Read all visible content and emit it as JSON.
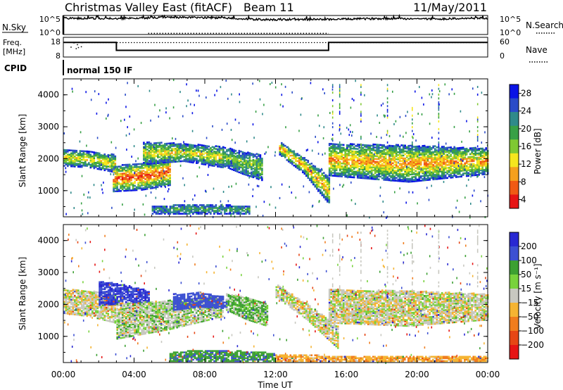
{
  "header": {
    "station": "Christmas Valley East (fitACF)",
    "beam": "Beam 11",
    "date": "11/May/2011"
  },
  "labels": {
    "nsky": "N.Sky",
    "nsearch": "N.Search",
    "freq": "Freq.",
    "freq_unit": "[MHz]",
    "nave": "Nave",
    "cpid": "CPID",
    "cpid_value": "normal 150 IF",
    "ylabel": "Slant Range [km]",
    "xlabel": "Time UT",
    "power_label": "Power [dB]",
    "velocity_label": "Velocity [m s⁻¹]"
  },
  "axis_ticks": {
    "nsky_left": [
      "10^5",
      "10^0"
    ],
    "nsky_right": [
      "10^5",
      "10^0"
    ],
    "freq_left": [
      "18",
      "8"
    ],
    "nave_right": [
      "60",
      "0"
    ],
    "range": [
      "1000",
      "2000",
      "3000",
      "4000"
    ],
    "time": [
      "00:00",
      "04:00",
      "08:00",
      "12:00",
      "16:00",
      "20:00",
      "00:00"
    ]
  },
  "chart_data": [
    {
      "type": "line",
      "panel": "noise",
      "series": [
        {
          "name": "N.Sky",
          "x_hours": [
            0,
            3,
            6,
            9,
            10.5,
            12,
            15,
            18,
            21,
            24
          ],
          "values_log10": [
            4.3,
            4.2,
            4.5,
            4.4,
            4.0,
            3.9,
            4.0,
            4.2,
            4.1,
            4.3
          ]
        },
        {
          "name": "N.Search",
          "x_hours": [
            4.8,
            15
          ],
          "values_log10": [
            0.3,
            0.3
          ]
        }
      ],
      "ylim_log10": [
        0,
        5
      ]
    },
    {
      "type": "line",
      "panel": "frequency",
      "series": [
        {
          "name": "Freq.",
          "x_hours": [
            0,
            3,
            3,
            15,
            15,
            24
          ],
          "values_mhz": [
            15.4,
            15.4,
            11.4,
            11.4,
            15.4,
            15.4
          ]
        },
        {
          "name": "Nave",
          "x_hours": [
            0,
            24
          ],
          "values": [
            44,
            44
          ]
        }
      ],
      "freq_lim": [
        8,
        18
      ],
      "nave_lim": [
        0,
        60
      ]
    },
    {
      "type": "heatmap",
      "panel": "power",
      "xlim_hours": [
        0,
        24
      ],
      "ylim_km": [
        180,
        4500
      ],
      "colorbar": {
        "label": "Power [dB]",
        "ticks": [
          4,
          8,
          12,
          16,
          20,
          24,
          28
        ],
        "colors": [
          "#0a14e6",
          "#2a4bc8",
          "#2f8a8a",
          "#38a046",
          "#7fc832",
          "#f5e61e",
          "#f5a01e",
          "#f05a14",
          "#e61414"
        ]
      },
      "echo_bands": [
        {
          "t0": 0.0,
          "t1": 2.9,
          "r_top": [
            2250,
            2200,
            2100
          ],
          "r_bot": [
            1750,
            1700,
            1550
          ],
          "power_peak": 20
        },
        {
          "t0": 2.8,
          "t1": 6.0,
          "r_top": [
            1750,
            1850,
            2000
          ],
          "r_bot": [
            950,
            1000,
            1150
          ],
          "power_peak": 28
        },
        {
          "t0": 4.5,
          "t1": 9.0,
          "r_top": [
            2500,
            2450,
            2350
          ],
          "r_bot": [
            1800,
            1900,
            1700
          ],
          "power_peak": 20
        },
        {
          "t0": 9.0,
          "t1": 11.2,
          "r_top": [
            2350,
            2200,
            2100
          ],
          "r_bot": [
            1750,
            1500,
            1300
          ],
          "power_peak": 16
        },
        {
          "t0": 12.2,
          "t1": 15.0,
          "r_top": [
            2500,
            2000,
            1400
          ],
          "r_bot": [
            2100,
            1500,
            550
          ],
          "power_peak": 24
        },
        {
          "t0": 15.0,
          "t1": 24.0,
          "r_top": [
            2450,
            2400,
            2300
          ],
          "r_bot": [
            1450,
            1250,
            1500
          ],
          "power_peak": 24
        },
        {
          "t0": 5.0,
          "t1": 10.5,
          "r_top": [
            500,
            550,
            500
          ],
          "r_bot": [
            250,
            250,
            250
          ],
          "power_peak": 12
        }
      ]
    },
    {
      "type": "heatmap",
      "panel": "velocity",
      "xlim_hours": [
        0,
        24
      ],
      "ylim_km": [
        180,
        4500
      ],
      "colorbar": {
        "label": "Velocity [m s⁻¹]",
        "ticks": [
          200,
          100,
          50,
          15,
          -15,
          -50,
          -100,
          -200
        ],
        "colors": [
          "#2828d2",
          "#3c50d2",
          "#3ca032",
          "#78d23c",
          "#c8c8c0",
          "#f5b432",
          "#f07d1e",
          "#e64614",
          "#e61414"
        ]
      },
      "echo_bands": [
        {
          "t0": 0.0,
          "t1": 2.9,
          "r_top": [
            2450,
            2400,
            2300
          ],
          "r_bot": [
            1700,
            1600,
            1400
          ],
          "velocity_typical": 0
        },
        {
          "t0": 2.0,
          "t1": 4.8,
          "r_top": [
            2700,
            2600,
            2400
          ],
          "r_bot": [
            1950,
            2000,
            2050
          ],
          "velocity_typical": 150
        },
        {
          "t0": 3.0,
          "t1": 9.0,
          "r_top": [
            2000,
            2100,
            2250
          ],
          "r_bot": [
            900,
            1200,
            1600
          ],
          "velocity_typical": 10
        },
        {
          "t0": 6.2,
          "t1": 9.2,
          "r_top": [
            2300,
            2350,
            2200
          ],
          "r_bot": [
            1800,
            1900,
            1850
          ],
          "velocity_typical": 120
        },
        {
          "t0": 9.2,
          "t1": 11.5,
          "r_top": [
            2300,
            2200,
            2000
          ],
          "r_bot": [
            1800,
            1500,
            1300
          ],
          "velocity_typical": 30
        },
        {
          "t0": 12.0,
          "t1": 15.5,
          "r_top": [
            2600,
            2000,
            1300
          ],
          "r_bot": [
            2200,
            1500,
            600
          ],
          "velocity_typical": 0
        },
        {
          "t0": 15.0,
          "t1": 24.0,
          "r_top": [
            2450,
            2400,
            2300
          ],
          "r_bot": [
            1400,
            1300,
            1500
          ],
          "velocity_typical": 0
        },
        {
          "t0": 6.0,
          "t1": 12.0,
          "r_top": [
            500,
            550,
            450
          ],
          "r_bot": [
            200,
            200,
            200
          ],
          "velocity_typical": 60
        },
        {
          "t0": 12.0,
          "t1": 24.0,
          "r_top": [
            400,
            350,
            350
          ],
          "r_bot": [
            200,
            200,
            200
          ],
          "velocity_typical": -40
        }
      ]
    }
  ]
}
